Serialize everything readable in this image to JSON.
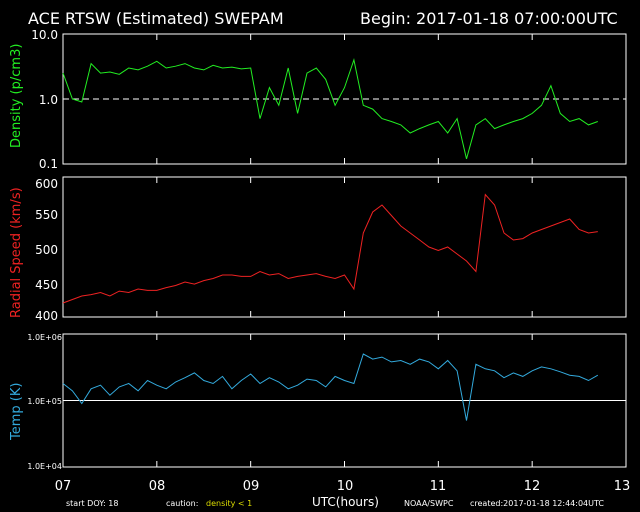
{
  "header": {
    "title": "ACE RTSW (Estimated) SWEPAM",
    "begin": "Begin: 2017-01-18 07:00:00UTC"
  },
  "footer": {
    "start_doy": "start DOY: 18",
    "caution_prefix": "caution:",
    "caution_flag": "density < 1",
    "x_title": "UTC(hours)",
    "source": "NOAA/SWPC",
    "created": "created:2017-01-18 12:44:04UTC"
  },
  "colors": {
    "density": "#22ee22",
    "speed": "#ee2222",
    "temp": "#33aadd",
    "caution": "#dddd00",
    "axes": "#ffffff",
    "background": "#000000"
  },
  "chart_data": [
    {
      "type": "line",
      "title": "",
      "ylabel": "Density (p/cm3)",
      "yscale": "log",
      "ylim": [
        0.1,
        10.0
      ],
      "yticks": [
        "10.0",
        "1.0",
        "0.1"
      ],
      "reference_line": 1.0,
      "xlim": [
        7,
        13
      ],
      "xticks": [
        "07",
        "08",
        "09",
        "10",
        "11",
        "12",
        "13"
      ],
      "x": [
        7.0,
        7.1,
        7.2,
        7.3,
        7.4,
        7.5,
        7.6,
        7.7,
        7.8,
        7.9,
        8.0,
        8.1,
        8.2,
        8.3,
        8.4,
        8.5,
        8.6,
        8.7,
        8.8,
        8.9,
        9.0,
        9.1,
        9.2,
        9.3,
        9.4,
        9.5,
        9.6,
        9.7,
        9.8,
        9.9,
        10.0,
        10.1,
        10.2,
        10.3,
        10.4,
        10.5,
        10.6,
        10.7,
        10.8,
        10.9,
        11.0,
        11.1,
        11.2,
        11.3,
        11.4,
        11.5,
        11.6,
        11.7,
        11.8,
        11.9,
        12.0,
        12.1,
        12.2,
        12.3,
        12.4,
        12.5,
        12.6,
        12.7
      ],
      "values": [
        2.5,
        1.0,
        0.9,
        3.5,
        2.5,
        2.6,
        2.4,
        3.0,
        2.8,
        3.2,
        3.8,
        3.0,
        3.2,
        3.5,
        3.0,
        2.8,
        3.3,
        3.0,
        3.1,
        2.9,
        3.0,
        0.5,
        1.5,
        0.8,
        3.0,
        0.6,
        2.5,
        3.0,
        2.0,
        0.8,
        1.5,
        4.0,
        0.8,
        0.7,
        0.5,
        0.45,
        0.4,
        0.3,
        0.35,
        0.4,
        0.45,
        0.3,
        0.5,
        0.12,
        0.4,
        0.5,
        0.35,
        0.4,
        0.45,
        0.5,
        0.6,
        0.8,
        1.6,
        0.6,
        0.45,
        0.5,
        0.4,
        0.45
      ]
    },
    {
      "type": "line",
      "title": "",
      "ylabel": "Radial Speed (km/s)",
      "ylim": [
        400,
        600
      ],
      "yticks": [
        "600",
        "550",
        "500",
        "450",
        "400"
      ],
      "xlim": [
        7,
        13
      ],
      "x": [
        7.0,
        7.1,
        7.2,
        7.3,
        7.4,
        7.5,
        7.6,
        7.7,
        7.8,
        7.9,
        8.0,
        8.1,
        8.2,
        8.3,
        8.4,
        8.5,
        8.6,
        8.7,
        8.8,
        8.9,
        9.0,
        9.1,
        9.2,
        9.3,
        9.4,
        9.5,
        9.6,
        9.7,
        9.8,
        9.9,
        10.0,
        10.1,
        10.2,
        10.3,
        10.4,
        10.5,
        10.6,
        10.7,
        10.8,
        10.9,
        11.0,
        11.1,
        11.2,
        11.3,
        11.4,
        11.5,
        11.6,
        11.7,
        11.8,
        11.9,
        12.0,
        12.1,
        12.2,
        12.3,
        12.4,
        12.5,
        12.6,
        12.7
      ],
      "values": [
        420,
        425,
        430,
        432,
        435,
        430,
        437,
        435,
        440,
        438,
        438,
        442,
        445,
        450,
        447,
        452,
        455,
        460,
        460,
        458,
        458,
        465,
        460,
        462,
        455,
        458,
        460,
        462,
        458,
        455,
        460,
        440,
        520,
        550,
        560,
        545,
        530,
        520,
        510,
        500,
        495,
        500,
        490,
        480,
        465,
        575,
        560,
        520,
        510,
        512,
        520,
        525,
        530,
        535,
        540,
        525,
        520,
        522
      ]
    },
    {
      "type": "line",
      "title": "",
      "ylabel": "Temp (K)",
      "yscale": "log",
      "ylim": [
        10000,
        1000000
      ],
      "yticks": [
        "1.0E+06",
        "1.0E+05",
        "1.0E+04"
      ],
      "reference_line": 100000,
      "xlim": [
        7,
        13
      ],
      "x": [
        7.0,
        7.1,
        7.2,
        7.3,
        7.4,
        7.5,
        7.6,
        7.7,
        7.8,
        7.9,
        8.0,
        8.1,
        8.2,
        8.3,
        8.4,
        8.5,
        8.6,
        8.7,
        8.8,
        8.9,
        9.0,
        9.1,
        9.2,
        9.3,
        9.4,
        9.5,
        9.6,
        9.7,
        9.8,
        9.9,
        10.0,
        10.1,
        10.2,
        10.3,
        10.4,
        10.5,
        10.6,
        10.7,
        10.8,
        10.9,
        11.0,
        11.1,
        11.2,
        11.3,
        11.4,
        11.5,
        11.6,
        11.7,
        11.8,
        11.9,
        12.0,
        12.1,
        12.2,
        12.3,
        12.4,
        12.5,
        12.6,
        12.7
      ],
      "values": [
        180000,
        140000,
        90000,
        150000,
        170000,
        120000,
        160000,
        180000,
        140000,
        200000,
        170000,
        150000,
        190000,
        220000,
        260000,
        200000,
        180000,
        230000,
        150000,
        200000,
        250000,
        180000,
        220000,
        190000,
        150000,
        170000,
        210000,
        200000,
        160000,
        230000,
        200000,
        180000,
        500000,
        420000,
        450000,
        380000,
        400000,
        350000,
        420000,
        380000,
        300000,
        400000,
        280000,
        50000,
        350000,
        300000,
        280000,
        220000,
        260000,
        230000,
        280000,
        320000,
        300000,
        270000,
        240000,
        230000,
        200000,
        240000
      ]
    }
  ]
}
